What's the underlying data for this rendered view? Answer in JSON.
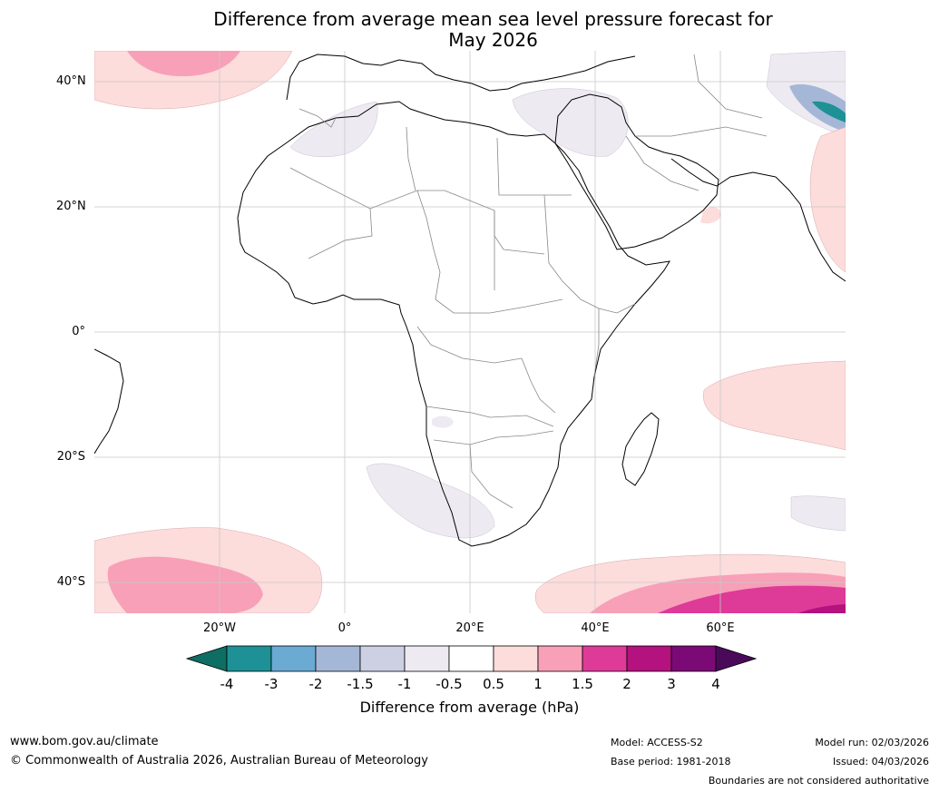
{
  "title": {
    "line1": "Difference from average mean sea level pressure forecast for",
    "line2": "May 2026"
  },
  "axes": {
    "lat_labels": [
      "40°N",
      "20°N",
      "0°",
      "20°S",
      "40°S"
    ],
    "lon_labels": [
      "20°W",
      "0°",
      "20°E",
      "40°E",
      "60°E"
    ]
  },
  "colorbar": {
    "ticks": [
      "-4",
      "-3",
      "-2",
      "-1.5",
      "-1",
      "-0.5",
      "0.5",
      "1",
      "1.5",
      "2",
      "3",
      "4"
    ],
    "colors": [
      "#0e6e63",
      "#1d9196",
      "#6aaad3",
      "#a5b7d6",
      "#cdcfe3",
      "#eeeaf2",
      "#ffffff",
      "#fddcdc",
      "#f7a0b8",
      "#de3a98",
      "#b3127f",
      "#7c0a76",
      "#4a0a5a"
    ],
    "label": "Difference from average (hPa)"
  },
  "footer": {
    "website": "www.bom.gov.au/climate",
    "copyright": "© Commonwealth of Australia 2026, Australian Bureau of Meteorology",
    "model": "Model: ACCESS-S2",
    "base_period": "Base period: 1981-2018",
    "model_run": "Model run: 02/03/2026",
    "issued": "Issued: 04/03/2026",
    "disclaimer": "Boundaries are not considered authoritative"
  }
}
